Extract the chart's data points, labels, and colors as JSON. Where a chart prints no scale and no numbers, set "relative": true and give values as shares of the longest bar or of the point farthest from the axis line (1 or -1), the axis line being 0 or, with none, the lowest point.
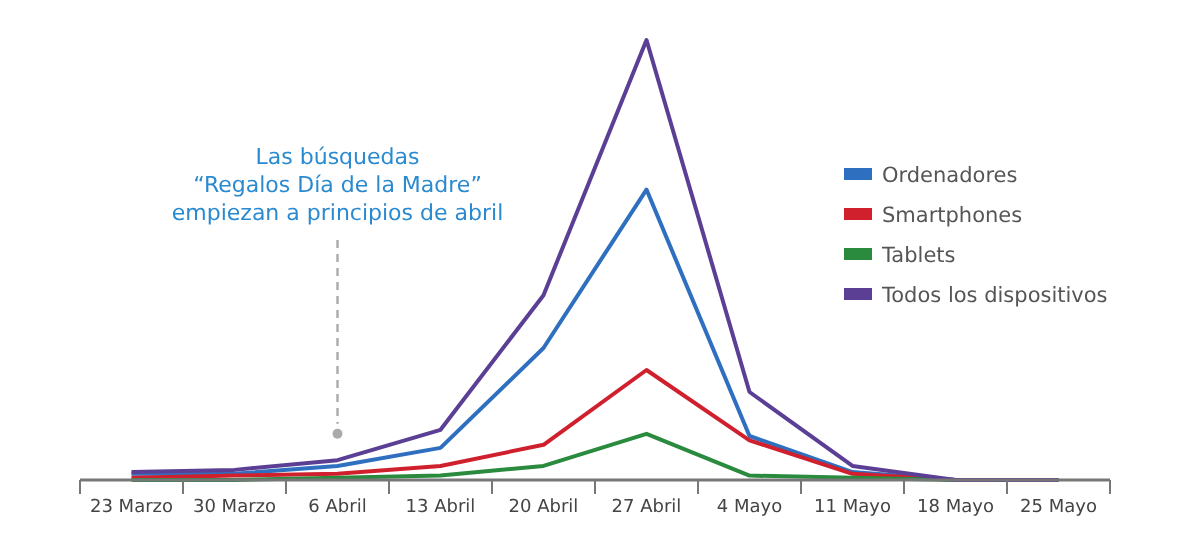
{
  "chart_data": {
    "type": "line",
    "relative": true,
    "categories": [
      "23 Marzo",
      "30 Marzo",
      "6 Abril",
      "13 Abril",
      "20 Abril",
      "27 Abril",
      "4 Mayo",
      "11 Mayo",
      "18 Mayo",
      "25 Mayo"
    ],
    "series": [
      {
        "name": "Ordenadores",
        "color": "#2e6fc0",
        "values": [
          0.014,
          0.014,
          0.032,
          0.073,
          0.3,
          0.66,
          0.1,
          0.018,
          0,
          0
        ]
      },
      {
        "name": "Smartphones",
        "color": "#d0202e",
        "values": [
          0.005,
          0.01,
          0.014,
          0.032,
          0.08,
          0.25,
          0.09,
          0.014,
          0,
          0
        ]
      },
      {
        "name": "Tablets",
        "color": "#2a8a3e",
        "values": [
          0,
          0,
          0.005,
          0.01,
          0.032,
          0.105,
          0.01,
          0.005,
          0,
          0
        ]
      },
      {
        "name": "Todos los dispositivos",
        "color": "#5b3f95",
        "values": [
          0.018,
          0.023,
          0.045,
          0.114,
          0.42,
          1,
          0.2,
          0.032,
          0,
          0
        ]
      }
    ],
    "annotations": [
      {
        "text": "Las búsquedas\n“Regalos Día de la Madre”\nempiezan a principios de abril",
        "x": "6 Abril",
        "y": 0.105
      }
    ],
    "legend": "right",
    "grid": false,
    "marker": "none",
    "line_style": "solid"
  }
}
